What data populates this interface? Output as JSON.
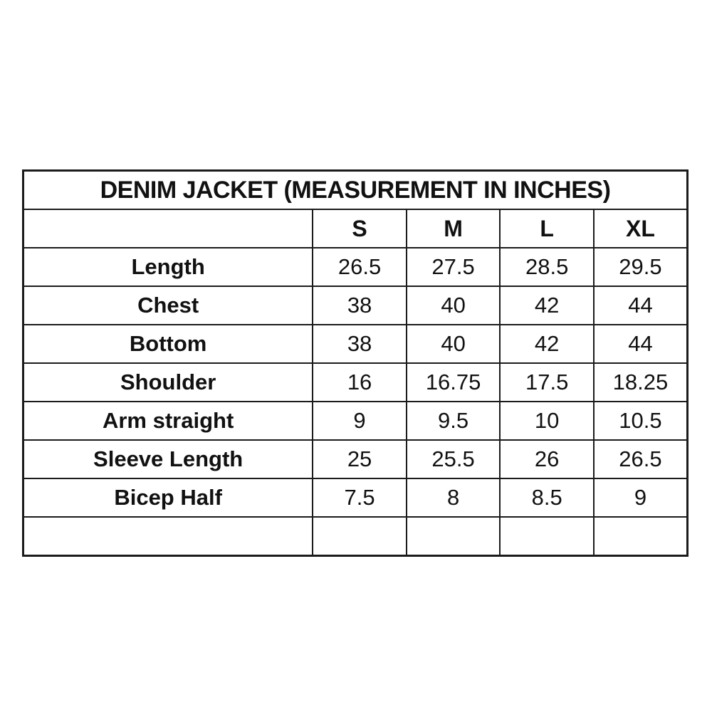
{
  "accent_color": "#ed1c24",
  "border_color": "#1b1b1b",
  "chart_data": {
    "type": "table",
    "title": "DENIM JACKET (MEASUREMENT IN INCHES)",
    "unit": "inches",
    "columns": [
      "",
      "S",
      "M",
      "L",
      "XL"
    ],
    "rows": [
      {
        "label": "Length",
        "values": [
          "26.5",
          "27.5",
          "28.5",
          "29.5"
        ]
      },
      {
        "label": "Chest",
        "values": [
          "38",
          "40",
          "42",
          "44"
        ]
      },
      {
        "label": "Bottom",
        "values": [
          "38",
          "40",
          "42",
          "44"
        ]
      },
      {
        "label": "Shoulder",
        "values": [
          "16",
          "16.75",
          "17.5",
          "18.25"
        ]
      },
      {
        "label": "Arm straight",
        "values": [
          "9",
          "9.5",
          "10",
          "10.5"
        ]
      },
      {
        "label": "Sleeve Length",
        "values": [
          "25",
          "25.5",
          "26",
          "26.5"
        ]
      },
      {
        "label": "Bicep Half",
        "values": [
          "7.5",
          "8",
          "8.5",
          "9"
        ]
      },
      {
        "label": "",
        "values": [
          "",
          "",
          "",
          ""
        ]
      }
    ]
  }
}
